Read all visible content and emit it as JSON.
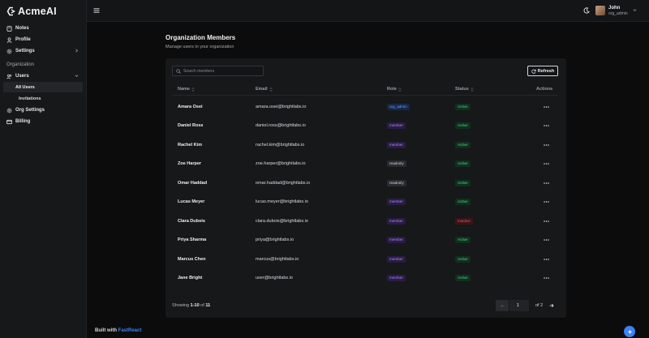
{
  "app": {
    "name": "AcmeAI",
    "built_prefix": "Built with ",
    "built_brand": "FastReact"
  },
  "colors": {
    "accent": "#3b82f6",
    "background": "#0c0c0d",
    "panel": "#17181a"
  },
  "sidebar": {
    "items": [
      {
        "label": "Notes",
        "icon": "note-icon"
      },
      {
        "label": "Profile",
        "icon": "user-icon"
      },
      {
        "label": "Settings",
        "icon": "gear-icon",
        "chevron": "chevron-right-icon"
      }
    ],
    "section": "Organization",
    "org_items": [
      {
        "label": "Users",
        "icon": "users-icon",
        "chevron": "chevron-down-icon"
      }
    ],
    "sub_items": [
      {
        "label": "All Users",
        "active": true
      },
      {
        "label": "Invitations",
        "active": false
      }
    ],
    "org_items2": [
      {
        "label": "Org Settings",
        "icon": "settings-icon"
      },
      {
        "label": "Billing",
        "icon": "credit-card-icon"
      }
    ]
  },
  "topbar": {
    "user_name": "John",
    "user_role": "org_admin"
  },
  "main": {
    "title": "Organization Members",
    "subtitle": "Manage users in your organization",
    "search_placeholder": "Search members",
    "refresh_label": "Refresh",
    "columns": {
      "name": "Name",
      "email": "Email",
      "role": "Role",
      "status": "Status",
      "actions": "Actions"
    },
    "rows": [
      {
        "name": "Amara Osei",
        "email": "amara.osei@brightlabs.io",
        "role": "org_admin",
        "status": "Active"
      },
      {
        "name": "Daniel Ross",
        "email": "daniel.ross@brightlabs.io",
        "role": "member",
        "status": "Active"
      },
      {
        "name": "Rachel Kim",
        "email": "rachel.kim@brightlabs.io",
        "role": "member",
        "status": "Active"
      },
      {
        "name": "Zoe Harper",
        "email": "zoe.harper@brightlabs.io",
        "role": "readonly",
        "status": "Active"
      },
      {
        "name": "Omar Haddad",
        "email": "omar.haddad@brightlabs.io",
        "role": "readonly",
        "status": "Active"
      },
      {
        "name": "Lucas Meyer",
        "email": "lucas.meyer@brightlabs.io",
        "role": "member",
        "status": "Active"
      },
      {
        "name": "Clara Dubois",
        "email": "clara.dubois@brightlabs.io",
        "role": "member",
        "status": "Inactive"
      },
      {
        "name": "Priya Sharma",
        "email": "priya@brightlabs.io",
        "role": "member",
        "status": "Active"
      },
      {
        "name": "Marcus Chen",
        "email": "marcus@brightlabs.io",
        "role": "member",
        "status": "Active"
      },
      {
        "name": "Jane Bright",
        "email": "user@brightlabs.io",
        "role": "member",
        "status": "Active"
      }
    ],
    "footer": {
      "showing_prefix": "Showing ",
      "range": "1-10",
      "of_word": " of ",
      "total": "11",
      "page_value": "1",
      "page_of": "of 2"
    }
  }
}
